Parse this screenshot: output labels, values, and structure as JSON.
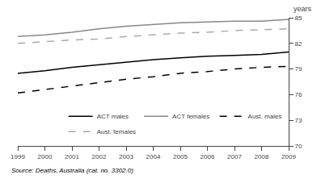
{
  "chart_data": {
    "type": "line",
    "x": [
      1999,
      2000,
      2001,
      2002,
      2003,
      2004,
      2005,
      2006,
      2007,
      2008,
      2009
    ],
    "series": [
      {
        "name": "ACT males",
        "color": "#000000",
        "line_style": "solid",
        "values": [
          78.5,
          78.8,
          79.2,
          79.5,
          79.8,
          80.1,
          80.3,
          80.5,
          80.6,
          80.7,
          81.0
        ]
      },
      {
        "name": "ACT females",
        "color": "#888888",
        "line_style": "solid",
        "values": [
          82.8,
          83.0,
          83.3,
          83.7,
          84.0,
          84.2,
          84.4,
          84.5,
          84.6,
          84.6,
          84.8
        ]
      },
      {
        "name": "Aust. males",
        "color": "#000000",
        "line_style": "dashed",
        "values": [
          76.2,
          76.6,
          77.0,
          77.4,
          77.8,
          78.1,
          78.5,
          78.7,
          79.0,
          79.2,
          79.3
        ]
      },
      {
        "name": "Aust. females",
        "color": "#aaaaaa",
        "line_style": "dashed",
        "values": [
          82.0,
          82.2,
          82.4,
          82.5,
          82.8,
          83.0,
          83.2,
          83.3,
          83.5,
          83.6,
          83.7
        ]
      }
    ],
    "xlim": [
      1999,
      2009
    ],
    "xticks": [
      1999,
      2000,
      2001,
      2002,
      2003,
      2004,
      2005,
      2006,
      2007,
      2008,
      2009
    ],
    "ylim": [
      70,
      85
    ],
    "yticks": [
      70,
      73,
      76,
      79,
      82,
      85
    ],
    "ylabel": "years",
    "annotation": "Source: Deaths, Australia (cat. no. 3302.0)",
    "legend": "lower right",
    "grid": false
  }
}
